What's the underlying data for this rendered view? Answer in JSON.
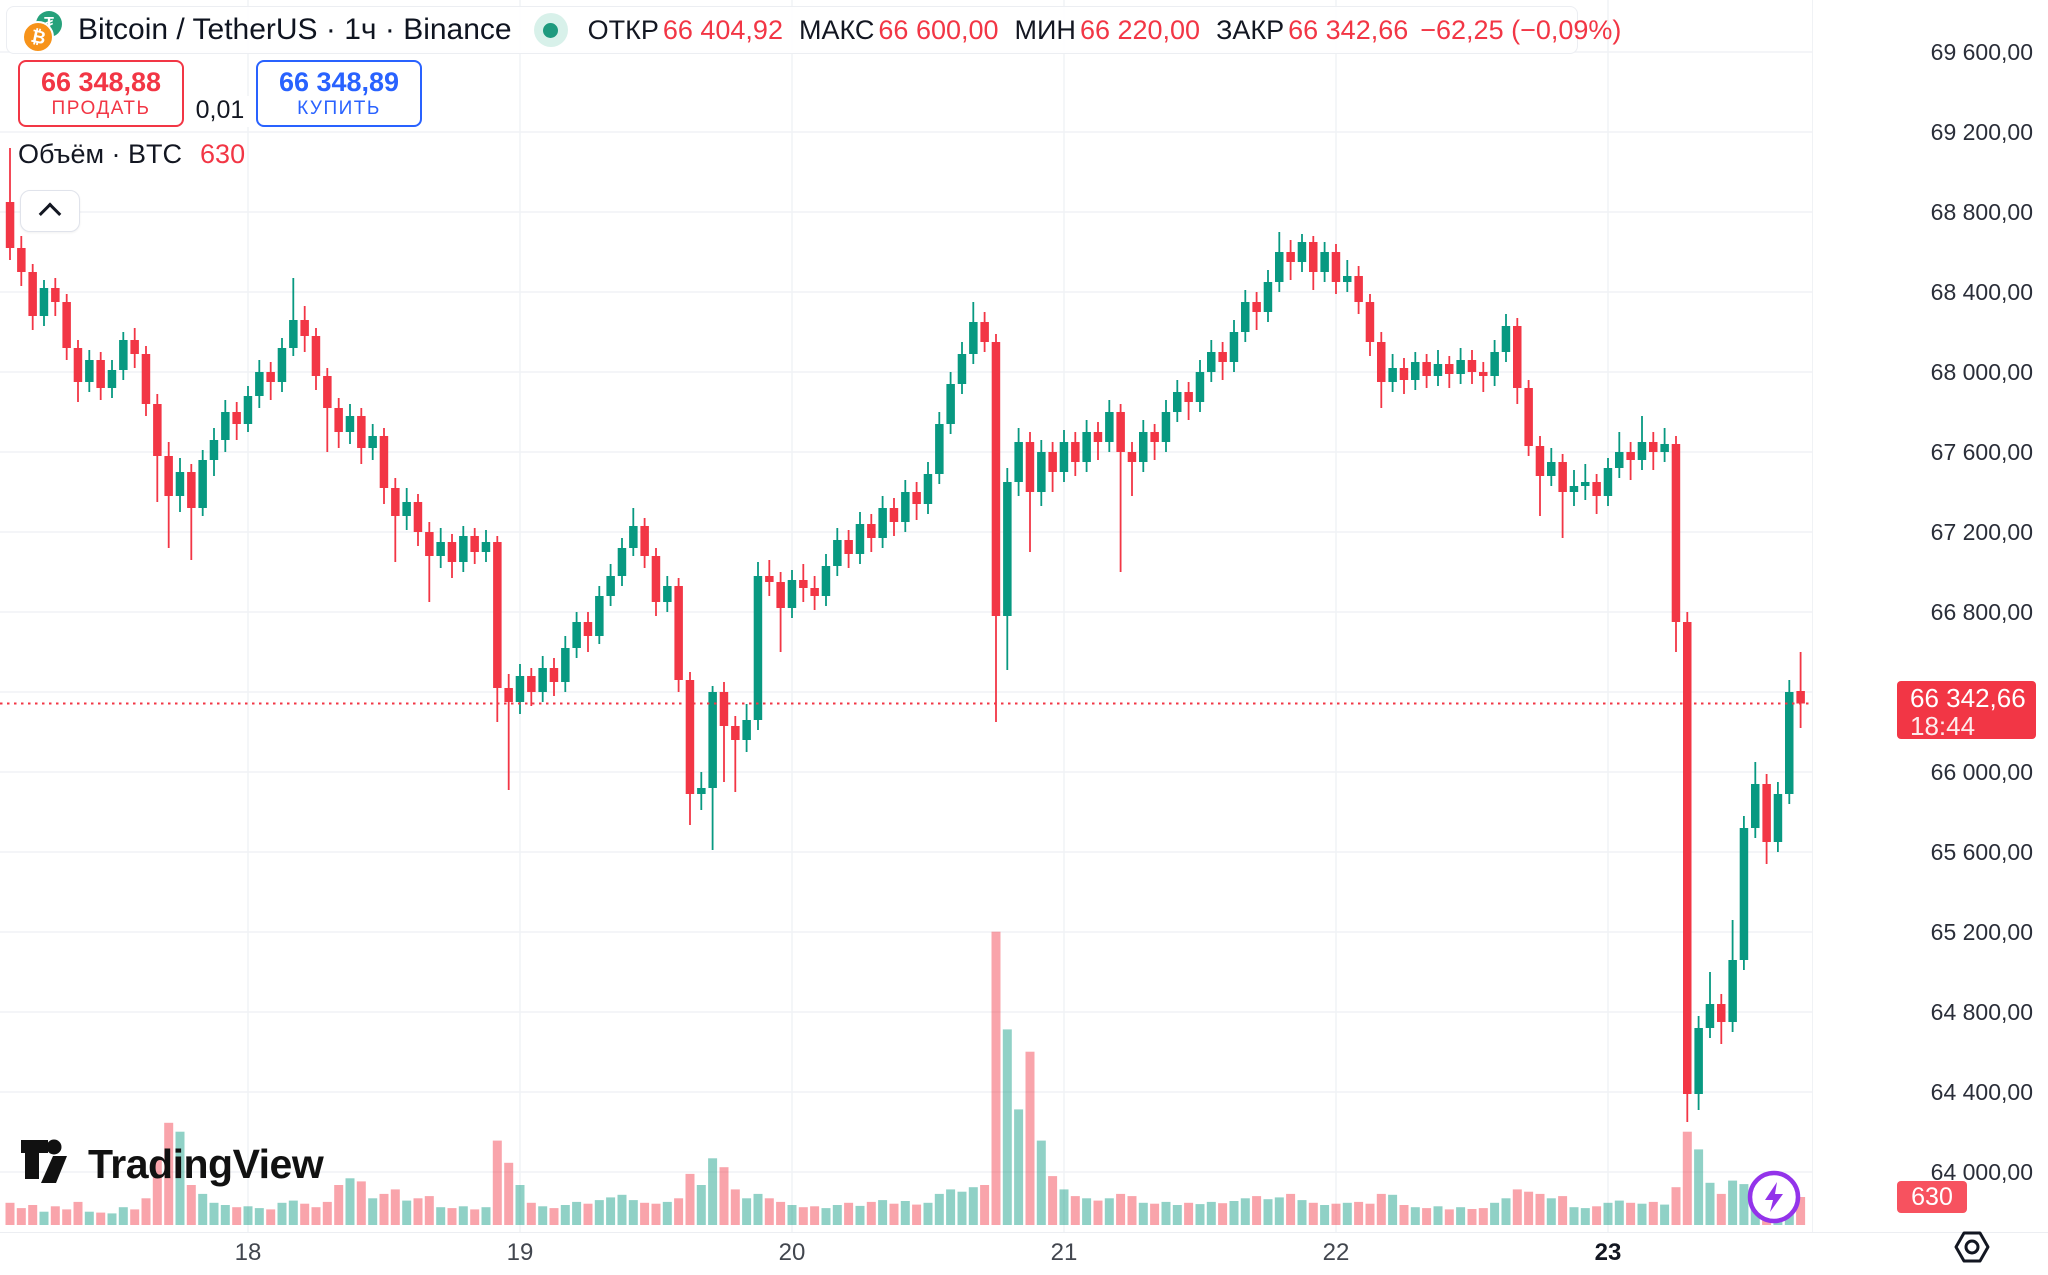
{
  "header": {
    "symbol_title": "Bitcoin / TetherUS · 1ч · Binance",
    "ohlc": {
      "open_label": "ОТКР",
      "open": "66 404,92",
      "high_label": "МАКС",
      "high": "66 600,00",
      "low_label": "МИН",
      "low": "66 220,00",
      "close_label": "ЗАКР",
      "close": "66 342,66",
      "change": "−62,25 (−0,09%)"
    }
  },
  "trade_panel": {
    "sell_price": "66 348,88",
    "sell_label": "ПРОДАТЬ",
    "spread": "0,01",
    "buy_price": "66 348,89",
    "buy_label": "КУПИТЬ"
  },
  "volume_legend": {
    "label": "Объём · BTC",
    "value": "630"
  },
  "price_label": {
    "price": "66 342,66",
    "countdown": "18:44"
  },
  "volume_axis_label": "630",
  "watermark_text": "TradingView",
  "icon_names": [
    "bitcoin-icon",
    "tether-icon",
    "market-open-dot",
    "chevron-up-icon",
    "tradingview-logo-icon",
    "lightning-icon",
    "gear-icon"
  ],
  "colors": {
    "up": "#089981",
    "down": "#f23645",
    "buy_accent": "#2962ff",
    "volume_up": "rgba(8,153,129,0.45)",
    "volume_down": "rgba(242,54,69,0.45)",
    "last_price": "#f23645",
    "grid": "#f0f2f5"
  },
  "price_scale": {
    "ticks": [
      {
        "price": 69600,
        "label": "69 600,00"
      },
      {
        "price": 69200,
        "label": "69 200,00"
      },
      {
        "price": 68800,
        "label": "68 800,00"
      },
      {
        "price": 68400,
        "label": "68 400,00"
      },
      {
        "price": 68000,
        "label": "68 000,00"
      },
      {
        "price": 67600,
        "label": "67 600,00"
      },
      {
        "price": 67200,
        "label": "67 200,00"
      },
      {
        "price": 66800,
        "label": "66 800,00"
      },
      {
        "price": 66400,
        "label": "66 400,00"
      },
      {
        "price": 66000,
        "label": "66 000,00"
      },
      {
        "price": 65600,
        "label": "65 600,00"
      },
      {
        "price": 65200,
        "label": "65 200,00"
      },
      {
        "price": 64800,
        "label": "64 800,00"
      },
      {
        "price": 64400,
        "label": "64 400,00"
      },
      {
        "price": 64000,
        "label": "64 000,00"
      }
    ]
  },
  "time_scale": {
    "ticks": [
      {
        "label": "18"
      },
      {
        "label": "19"
      },
      {
        "label": "20"
      },
      {
        "label": "21"
      },
      {
        "label": "22"
      },
      {
        "label": "23",
        "bold": true
      }
    ]
  },
  "chart_data": {
    "type": "candlestick",
    "title": "Bitcoin / TetherUS",
    "exchange": "Binance",
    "interval": "1ч",
    "visible_price_range": [
      63800,
      69700
    ],
    "price_grid_step": 400,
    "x_categories_days": [
      "18",
      "19",
      "20",
      "21",
      "22",
      "23"
    ],
    "current_price": 66342.66,
    "current_candle": {
      "open": 66404.92,
      "high": 66600,
      "low": 66220,
      "close": 66342.66,
      "volume_btc": 630
    },
    "candles_format": [
      "open",
      "high",
      "low",
      "close",
      "volume"
    ],
    "candles": [
      [
        68850,
        69120,
        68560,
        68620,
        500
      ],
      [
        68620,
        68680,
        68430,
        68500,
        380
      ],
      [
        68500,
        68540,
        68210,
        68280,
        450
      ],
      [
        68280,
        68460,
        68230,
        68420,
        300
      ],
      [
        68420,
        68470,
        68280,
        68350,
        420
      ],
      [
        68350,
        68390,
        68060,
        68120,
        350
      ],
      [
        68120,
        68160,
        67850,
        67950,
        520
      ],
      [
        67950,
        68110,
        67900,
        68060,
        300
      ],
      [
        68060,
        68100,
        67860,
        67920,
        280
      ],
      [
        67920,
        68060,
        67870,
        68010,
        260
      ],
      [
        68010,
        68200,
        67960,
        68160,
        400
      ],
      [
        68160,
        68220,
        68020,
        68090,
        350
      ],
      [
        68090,
        68130,
        67780,
        67840,
        600
      ],
      [
        67840,
        67890,
        67350,
        67580,
        1500
      ],
      [
        67580,
        67650,
        67120,
        67380,
        2300
      ],
      [
        67380,
        67570,
        67300,
        67500,
        2100
      ],
      [
        67500,
        67540,
        67060,
        67320,
        900
      ],
      [
        67320,
        67610,
        67280,
        67560,
        700
      ],
      [
        67560,
        67720,
        67480,
        67660,
        500
      ],
      [
        67660,
        67860,
        67600,
        67800,
        450
      ],
      [
        67800,
        67850,
        67660,
        67740,
        400
      ],
      [
        67740,
        67930,
        67700,
        67880,
        420
      ],
      [
        67880,
        68060,
        67820,
        68000,
        380
      ],
      [
        68000,
        68050,
        67860,
        67950,
        350
      ],
      [
        67950,
        68170,
        67900,
        68120,
        500
      ],
      [
        68120,
        68470,
        68080,
        68260,
        550
      ],
      [
        68260,
        68330,
        68100,
        68180,
        480
      ],
      [
        68180,
        68220,
        67910,
        67980,
        400
      ],
      [
        67980,
        68020,
        67600,
        67820,
        520
      ],
      [
        67820,
        67870,
        67620,
        67700,
        900
      ],
      [
        67700,
        67840,
        67640,
        67780,
        1050
      ],
      [
        67780,
        67820,
        67540,
        67620,
        980
      ],
      [
        67620,
        67740,
        67560,
        67680,
        600
      ],
      [
        67680,
        67720,
        67340,
        67420,
        700
      ],
      [
        67420,
        67470,
        67050,
        67280,
        800
      ],
      [
        67280,
        67420,
        67210,
        67350,
        550
      ],
      [
        67350,
        67390,
        67130,
        67200,
        600
      ],
      [
        67200,
        67250,
        66850,
        67080,
        650
      ],
      [
        67080,
        67220,
        67020,
        67150,
        400
      ],
      [
        67150,
        67190,
        66970,
        67050,
        380
      ],
      [
        67050,
        67230,
        67000,
        67180,
        420
      ],
      [
        67180,
        67220,
        67040,
        67100,
        350
      ],
      [
        67100,
        67210,
        67050,
        67150,
        400
      ],
      [
        67150,
        67180,
        66250,
        66420,
        1900
      ],
      [
        66420,
        66490,
        65910,
        66350,
        1400
      ],
      [
        66350,
        66540,
        66290,
        66480,
        900
      ],
      [
        66480,
        66520,
        66330,
        66400,
        500
      ],
      [
        66400,
        66580,
        66350,
        66520,
        420
      ],
      [
        66520,
        66570,
        66380,
        66450,
        380
      ],
      [
        66450,
        66680,
        66400,
        66620,
        450
      ],
      [
        66620,
        66800,
        66570,
        66750,
        520
      ],
      [
        66750,
        66800,
        66600,
        66680,
        480
      ],
      [
        66680,
        66930,
        66640,
        66880,
        560
      ],
      [
        66880,
        67040,
        66830,
        66980,
        620
      ],
      [
        66980,
        67170,
        66930,
        67120,
        680
      ],
      [
        67120,
        67320,
        67080,
        67230,
        560
      ],
      [
        67230,
        67270,
        67020,
        67080,
        500
      ],
      [
        67080,
        67120,
        66780,
        66850,
        480
      ],
      [
        66850,
        66980,
        66800,
        66930,
        520
      ],
      [
        66930,
        66970,
        66400,
        66460,
        600
      ],
      [
        66460,
        66500,
        65735,
        65890,
        1150
      ],
      [
        65890,
        66000,
        65810,
        65920,
        900
      ],
      [
        65920,
        66430,
        65610,
        66400,
        1500
      ],
      [
        66400,
        66450,
        65950,
        66230,
        1300
      ],
      [
        66230,
        66280,
        65900,
        66160,
        800
      ],
      [
        66160,
        66340,
        66100,
        66260,
        600
      ],
      [
        66260,
        67050,
        66210,
        66980,
        700
      ],
      [
        66980,
        67060,
        66880,
        66950,
        600
      ],
      [
        66950,
        67000,
        66600,
        66820,
        520
      ],
      [
        66820,
        67010,
        66770,
        66960,
        450
      ],
      [
        66960,
        67040,
        66850,
        66920,
        400
      ],
      [
        66920,
        66980,
        66810,
        66880,
        420
      ],
      [
        66880,
        67090,
        66830,
        67030,
        380
      ],
      [
        67030,
        67220,
        66980,
        67160,
        450
      ],
      [
        67160,
        67210,
        67020,
        67090,
        500
      ],
      [
        67090,
        67300,
        67040,
        67240,
        430
      ],
      [
        67240,
        67290,
        67100,
        67170,
        520
      ],
      [
        67170,
        67380,
        67120,
        67320,
        560
      ],
      [
        67320,
        67370,
        67180,
        67250,
        480
      ],
      [
        67250,
        67460,
        67200,
        67400,
        540
      ],
      [
        67400,
        67450,
        67260,
        67340,
        460
      ],
      [
        67340,
        67550,
        67290,
        67490,
        500
      ],
      [
        67490,
        67800,
        67440,
        67740,
        700
      ],
      [
        67740,
        68000,
        67690,
        67940,
        800
      ],
      [
        67940,
        68150,
        67890,
        68090,
        750
      ],
      [
        68090,
        68350,
        68040,
        68250,
        850
      ],
      [
        68250,
        68300,
        68100,
        68150,
        900
      ],
      [
        68150,
        68190,
        66250,
        66780,
        6600
      ],
      [
        66780,
        67520,
        66510,
        67450,
        4400
      ],
      [
        67450,
        67720,
        67380,
        67650,
        2600
      ],
      [
        67650,
        67700,
        67100,
        67400,
        3900
      ],
      [
        67400,
        67660,
        67330,
        67600,
        1900
      ],
      [
        67600,
        67650,
        67400,
        67500,
        1100
      ],
      [
        67500,
        67710,
        67450,
        67650,
        800
      ],
      [
        67650,
        67700,
        67480,
        67550,
        650
      ],
      [
        67550,
        67760,
        67500,
        67700,
        600
      ],
      [
        67700,
        67750,
        67560,
        67650,
        550
      ],
      [
        67650,
        67860,
        67600,
        67800,
        600
      ],
      [
        67800,
        67840,
        67000,
        67600,
        700
      ],
      [
        67600,
        67650,
        67380,
        67550,
        650
      ],
      [
        67550,
        67760,
        67500,
        67700,
        500
      ],
      [
        67700,
        67740,
        67560,
        67650,
        480
      ],
      [
        67650,
        67860,
        67600,
        67800,
        520
      ],
      [
        67800,
        67960,
        67750,
        67900,
        450
      ],
      [
        67900,
        67950,
        67760,
        67850,
        500
      ],
      [
        67850,
        68060,
        67800,
        68000,
        470
      ],
      [
        68000,
        68160,
        67950,
        68100,
        520
      ],
      [
        68100,
        68150,
        67960,
        68050,
        490
      ],
      [
        68050,
        68260,
        68000,
        68200,
        540
      ],
      [
        68200,
        68410,
        68150,
        68350,
        600
      ],
      [
        68350,
        68400,
        68210,
        68300,
        650
      ],
      [
        68300,
        68510,
        68250,
        68450,
        580
      ],
      [
        68450,
        68700,
        68400,
        68600,
        620
      ],
      [
        68600,
        68660,
        68460,
        68550,
        700
      ],
      [
        68550,
        68690,
        68500,
        68650,
        560
      ],
      [
        68650,
        68680,
        68410,
        68500,
        500
      ],
      [
        68500,
        68650,
        68450,
        68600,
        450
      ],
      [
        68600,
        68640,
        68390,
        68450,
        480
      ],
      [
        68450,
        68560,
        68400,
        68480,
        500
      ],
      [
        68480,
        68530,
        68290,
        68350,
        520
      ],
      [
        68350,
        68390,
        68080,
        68150,
        480
      ],
      [
        68150,
        68200,
        67820,
        67950,
        700
      ],
      [
        67950,
        68090,
        67900,
        68020,
        680
      ],
      [
        68020,
        68070,
        67890,
        67960,
        450
      ],
      [
        67960,
        68100,
        67910,
        68050,
        400
      ],
      [
        68050,
        68090,
        67920,
        67980,
        380
      ],
      [
        67980,
        68110,
        67930,
        68040,
        420
      ],
      [
        68040,
        68080,
        67920,
        67990,
        350
      ],
      [
        67990,
        68120,
        67940,
        68060,
        400
      ],
      [
        68060,
        68110,
        67940,
        68000,
        360
      ],
      [
        68000,
        68050,
        67900,
        67980,
        380
      ],
      [
        67980,
        68160,
        67930,
        68100,
        500
      ],
      [
        68100,
        68290,
        68050,
        68230,
        600
      ],
      [
        68230,
        68270,
        67840,
        67920,
        800
      ],
      [
        67920,
        67960,
        67580,
        67630,
        750
      ],
      [
        67630,
        67680,
        67280,
        67480,
        700
      ],
      [
        67480,
        67620,
        67430,
        67550,
        600
      ],
      [
        67550,
        67590,
        67170,
        67400,
        650
      ],
      [
        67400,
        67510,
        67330,
        67430,
        400
      ],
      [
        67430,
        67540,
        67360,
        67450,
        380
      ],
      [
        67450,
        67490,
        67290,
        67380,
        420
      ],
      [
        67380,
        67570,
        67330,
        67520,
        500
      ],
      [
        67520,
        67700,
        67470,
        67600,
        550
      ],
      [
        67600,
        67650,
        67460,
        67560,
        500
      ],
      [
        67560,
        67780,
        67510,
        67650,
        480
      ],
      [
        67650,
        67700,
        67510,
        67600,
        520
      ],
      [
        67600,
        67720,
        67550,
        67640,
        460
      ],
      [
        67640,
        67680,
        66600,
        66750,
        850
      ],
      [
        66750,
        66800,
        64250,
        64390,
        2100
      ],
      [
        64390,
        64780,
        64310,
        64720,
        1700
      ],
      [
        64720,
        65000,
        64670,
        64840,
        950
      ],
      [
        64840,
        64890,
        64640,
        64750,
        700
      ],
      [
        64750,
        65260,
        64700,
        65060,
        1000
      ],
      [
        65060,
        65780,
        65010,
        65720,
        920
      ],
      [
        65720,
        66050,
        65670,
        65940,
        860
      ],
      [
        65940,
        65990,
        65540,
        65650,
        700
      ],
      [
        65650,
        65950,
        65600,
        65890,
        620
      ],
      [
        65890,
        66460,
        65840,
        66400,
        800
      ],
      [
        66404.92,
        66600,
        66220,
        66342.66,
        630
      ]
    ]
  }
}
